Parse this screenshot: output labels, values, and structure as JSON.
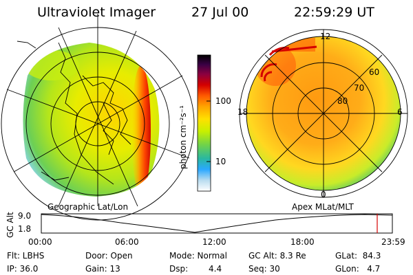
{
  "header": {
    "title": "Ultraviolet Imager",
    "date": "27 Jul 00",
    "time": "22:59:29 UT"
  },
  "left_panel": {
    "label": "Geographic Lat/Lon"
  },
  "right_panel": {
    "label": "Apex MLat/MLT",
    "mlt_labels": {
      "top": "12",
      "left": "18",
      "right": "6",
      "bottom": "0"
    },
    "lat_labels": [
      "60",
      "70",
      "80"
    ]
  },
  "colorbar": {
    "unit_label": "photon cm⁻²s⁻¹",
    "ticks": [
      "100",
      "10"
    ],
    "colors": [
      "#000000",
      "#3a0044",
      "#8a0040",
      "#d40000",
      "#ff5a00",
      "#ffa500",
      "#ffe000",
      "#c8f000",
      "#70d24a",
      "#2ab8a0",
      "#2aa8ff",
      "#b8dcf0",
      "#ffffff"
    ]
  },
  "altitude_plot": {
    "ylabel": "GC Alt",
    "ymax": "9.0",
    "ymin": "1.8",
    "xticks": [
      "00:00",
      "06:00",
      "12:00",
      "18:00",
      "23:59"
    ]
  },
  "info": {
    "filter": "Flt: LBHS",
    "door": "Door: Open",
    "mode": "Mode: Normal",
    "gc_alt": "GC Alt: 8.3 Re",
    "glat": "GLat:  84.3",
    "ip": "IP: 36.0",
    "gain": "Gain: 13",
    "dsp_label": "Dsp:",
    "dsp_value": "4.4",
    "seq": "Seq: 30",
    "glon": "GLon:   4.7"
  }
}
